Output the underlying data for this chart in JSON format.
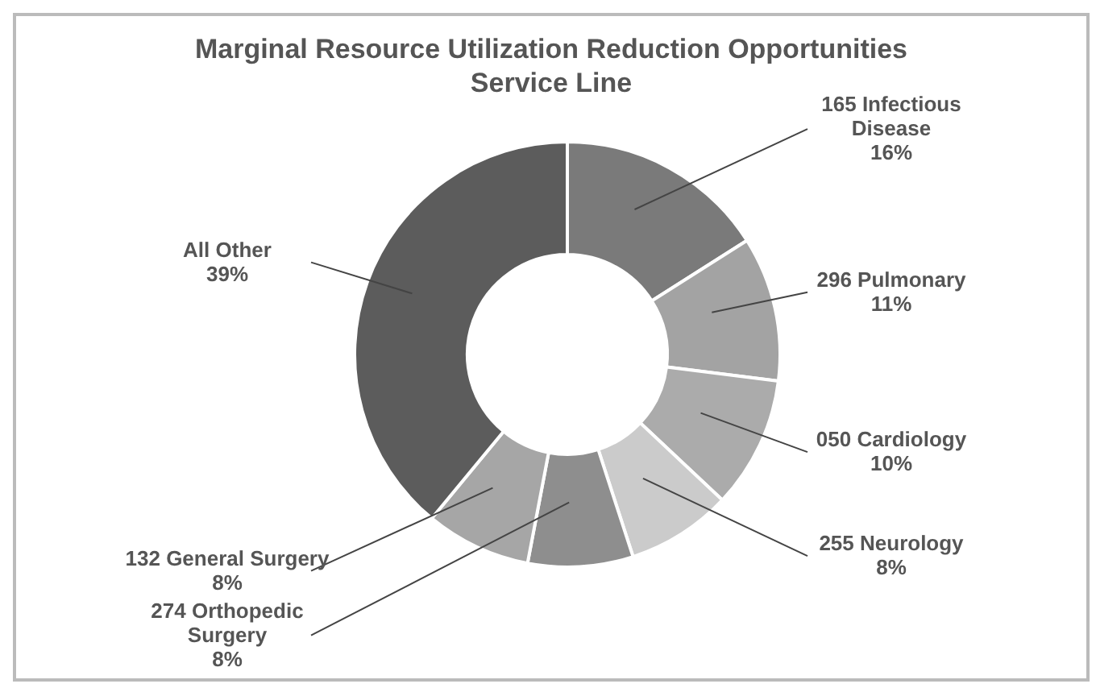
{
  "chart_data": {
    "type": "donut",
    "title": "Marginal Resource Utilization Reduction Opportunities",
    "subtitle": "Service Line",
    "categories": [
      "165 Infectious Disease",
      "296 Pulmonary",
      "050 Cardiology",
      "255 Neurology",
      "274 Orthopedic Surgery",
      "132 General Surgery",
      "All Other"
    ],
    "values": [
      16,
      11,
      10,
      8,
      8,
      8,
      39
    ],
    "value_labels": [
      "16%",
      "11%",
      "10%",
      "8%",
      "8%",
      "8%",
      "39%"
    ],
    "colors": [
      "#7a7a7a",
      "#a3a3a3",
      "#ababab",
      "#cbcbcb",
      "#8e8e8e",
      "#a6a6a6",
      "#5c5c5c"
    ]
  }
}
